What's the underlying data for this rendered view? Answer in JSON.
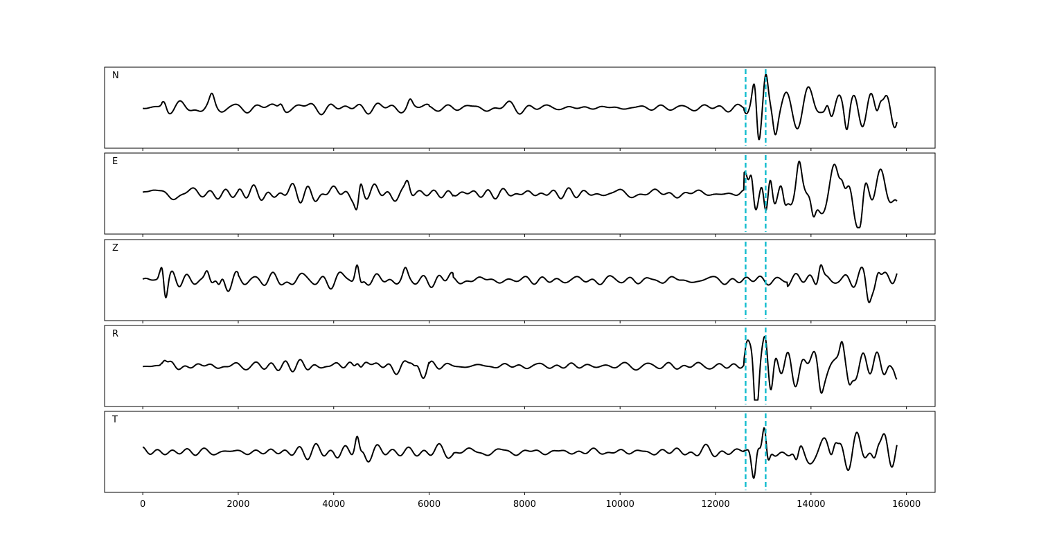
{
  "chart_data": {
    "type": "line",
    "title": "",
    "xlabel": "",
    "ylabel": "",
    "xlim": [
      -800,
      16600
    ],
    "ylim": [
      -1.25,
      1.25
    ],
    "xticks": [
      0,
      2000,
      4000,
      6000,
      8000,
      10000,
      12000,
      14000,
      16000
    ],
    "x_range": [
      0,
      15800
    ],
    "y_axis_visible": false,
    "grid": false,
    "vertical_markers": [
      12630,
      13050
    ],
    "vertical_marker_color": "#17becf",
    "trace_color": "#000000",
    "panels": [
      {
        "label": "N",
        "events": [
          {
            "t": 450,
            "a": 0.22
          },
          {
            "t": 1450,
            "a": 0.25
          },
          {
            "t": 2900,
            "a": 0.2
          },
          {
            "t": 5600,
            "a": 0.2
          },
          {
            "t": 12820,
            "a": 0.75
          },
          {
            "t": 12900,
            "a": -1.0
          },
          {
            "t": 13050,
            "a": 0.95
          },
          {
            "t": 13250,
            "a": -0.55
          },
          {
            "t": 14350,
            "a": 0.45
          },
          {
            "t": 14750,
            "a": -0.6
          },
          {
            "t": 15450,
            "a": 0.45
          }
        ],
        "noise": [
          {
            "t0": 0,
            "t1": 400,
            "amp": 0.03
          },
          {
            "t0": 400,
            "t1": 6000,
            "amp": 0.12
          },
          {
            "t0": 6000,
            "t1": 12600,
            "amp": 0.07
          },
          {
            "t0": 12600,
            "t1": 15800,
            "amp": 0.4
          }
        ]
      },
      {
        "label": "E",
        "events": [
          {
            "t": 4500,
            "a": -0.6
          },
          {
            "t": 4550,
            "a": 0.45
          },
          {
            "t": 5550,
            "a": 0.35
          },
          {
            "t": 12750,
            "a": 1.0
          },
          {
            "t": 12700,
            "a": -0.4
          },
          {
            "t": 13050,
            "a": -0.9
          },
          {
            "t": 13150,
            "a": 0.85
          },
          {
            "t": 13450,
            "a": -0.6
          },
          {
            "t": 13750,
            "a": 0.55
          },
          {
            "t": 14050,
            "a": -0.6
          },
          {
            "t": 14650,
            "a": 0.5
          },
          {
            "t": 15050,
            "a": -0.55
          }
        ],
        "noise": [
          {
            "t0": 0,
            "t1": 2000,
            "amp": 0.12
          },
          {
            "t0": 2000,
            "t1": 6500,
            "amp": 0.15
          },
          {
            "t0": 6500,
            "t1": 12600,
            "amp": 0.09
          },
          {
            "t0": 12600,
            "t1": 15800,
            "amp": 0.45
          }
        ]
      },
      {
        "label": "Z",
        "events": [
          {
            "t": 420,
            "a": 1.0
          },
          {
            "t": 460,
            "a": -0.8
          },
          {
            "t": 1600,
            "a": -0.4
          },
          {
            "t": 1350,
            "a": 0.3
          },
          {
            "t": 4500,
            "a": 0.75
          },
          {
            "t": 4540,
            "a": -0.35
          },
          {
            "t": 5500,
            "a": 0.25
          },
          {
            "t": 14200,
            "a": 0.6
          },
          {
            "t": 15200,
            "a": -0.45
          },
          {
            "t": 15400,
            "a": 0.35
          }
        ],
        "noise": [
          {
            "t0": 0,
            "t1": 350,
            "amp": 0.04
          },
          {
            "t0": 350,
            "t1": 2000,
            "amp": 0.22
          },
          {
            "t0": 2000,
            "t1": 6500,
            "amp": 0.16
          },
          {
            "t0": 6500,
            "t1": 13500,
            "amp": 0.07
          },
          {
            "t0": 13500,
            "t1": 15800,
            "amp": 0.22
          }
        ]
      },
      {
        "label": "R",
        "events": [
          {
            "t": 450,
            "a": 0.2
          },
          {
            "t": 4500,
            "a": 0.3
          },
          {
            "t": 5700,
            "a": -0.2
          },
          {
            "t": 12780,
            "a": 0.8
          },
          {
            "t": 12850,
            "a": -1.0
          },
          {
            "t": 13050,
            "a": 0.75
          },
          {
            "t": 13170,
            "a": -0.75
          },
          {
            "t": 14200,
            "a": -0.45
          },
          {
            "t": 14650,
            "a": 0.6
          },
          {
            "t": 14800,
            "a": -0.5
          },
          {
            "t": 15750,
            "a": 0.35
          }
        ],
        "noise": [
          {
            "t0": 0,
            "t1": 400,
            "amp": 0.03
          },
          {
            "t0": 400,
            "t1": 6000,
            "amp": 0.12
          },
          {
            "t0": 6000,
            "t1": 12600,
            "amp": 0.07
          },
          {
            "t0": 12600,
            "t1": 15800,
            "amp": 0.42
          }
        ]
      },
      {
        "label": "T",
        "events": [
          {
            "t": 4500,
            "a": 0.6
          },
          {
            "t": 4540,
            "a": -0.4
          },
          {
            "t": 12800,
            "a": -0.65
          },
          {
            "t": 12880,
            "a": 0.55
          },
          {
            "t": 13040,
            "a": 0.95
          },
          {
            "t": 13080,
            "a": -1.0
          },
          {
            "t": 13700,
            "a": -0.5
          },
          {
            "t": 14500,
            "a": 0.45
          },
          {
            "t": 15400,
            "a": 0.4
          }
        ],
        "noise": [
          {
            "t0": 0,
            "t1": 4000,
            "amp": 0.12
          },
          {
            "t0": 4000,
            "t1": 6500,
            "amp": 0.15
          },
          {
            "t0": 6500,
            "t1": 12600,
            "amp": 0.09
          },
          {
            "t0": 12600,
            "t1": 15800,
            "amp": 0.45
          }
        ]
      }
    ]
  }
}
